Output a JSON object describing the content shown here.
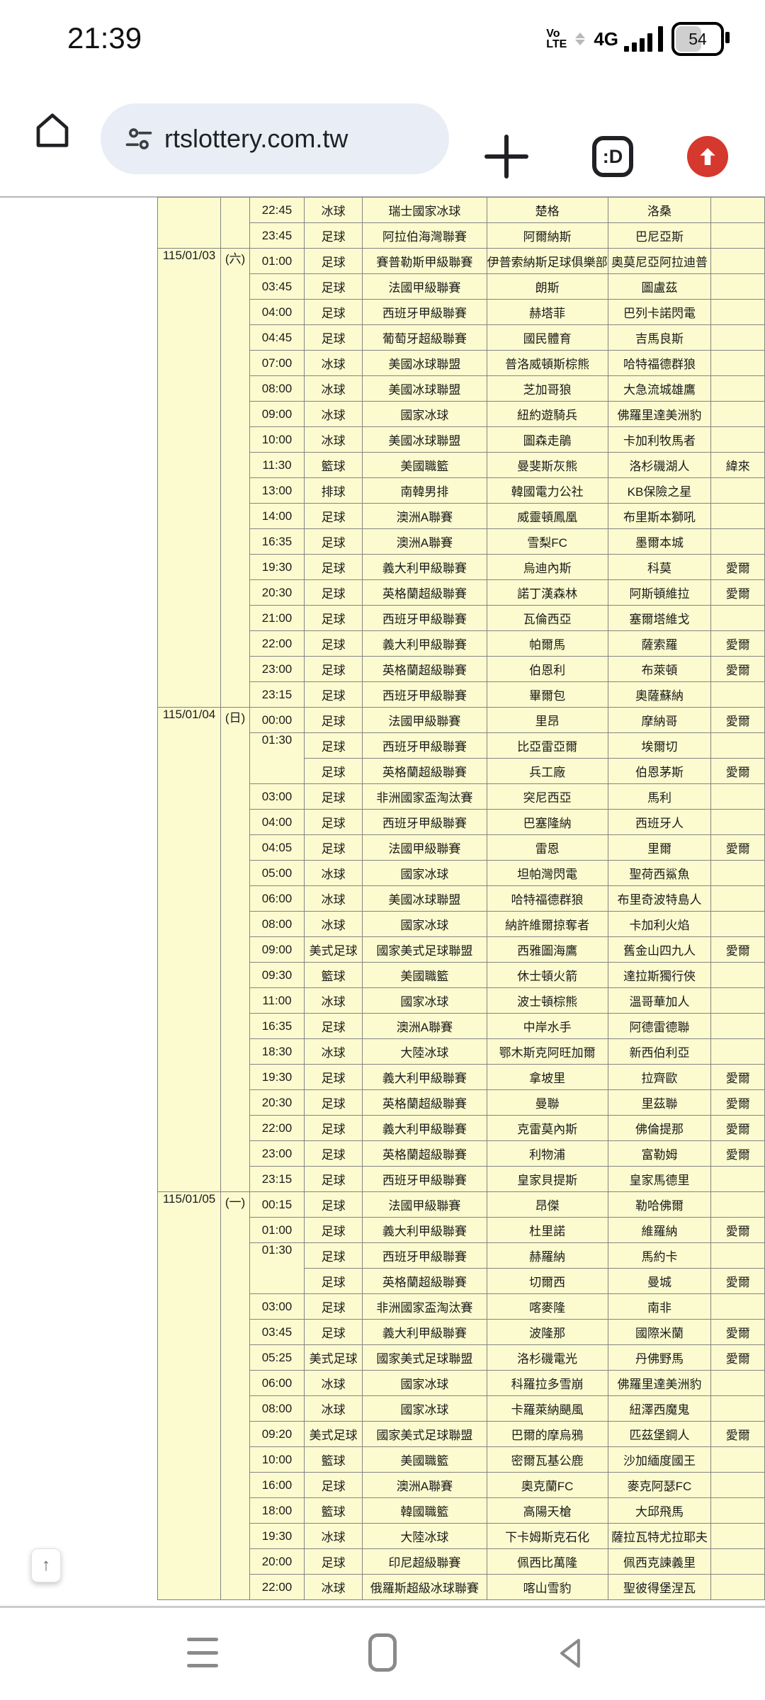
{
  "status_bar": {
    "time": "21:39",
    "carrier_badge_line1": "Vo",
    "carrier_badge_line2": "LTE",
    "network": "4G",
    "battery_percent": "54"
  },
  "toolbar": {
    "url": "rtslottery.com.tw",
    "tab_switcher_label": ":D"
  },
  "scroll_top": {
    "arrow": "↑"
  },
  "icons": {
    "home-icon": "house outline",
    "tune-icon": "site settings sliders",
    "plus-icon": "new tab",
    "tab-switcher-icon": "tab count box",
    "update-icon": "red circle up arrow",
    "recents-icon": "three lines",
    "nav-home-icon": "rounded rectangle",
    "back-icon": "left triangle",
    "scroll-top-icon": "up arrow"
  },
  "colors": {
    "cell_bg": "#fbfbcf",
    "cell_border": "#848484",
    "omnibox_bg": "#e9edf6",
    "update_red": "#d5382c"
  },
  "table": {
    "columns": [
      "date",
      "weekday",
      "time",
      "sport",
      "league",
      "home",
      "away",
      "channel"
    ],
    "sections": [
      {
        "date": "",
        "weekday": "",
        "rows": [
          {
            "time": "22:45",
            "sport": "冰球",
            "league": "瑞士國家冰球",
            "home": "楚格",
            "away": "洛桑",
            "channel": ""
          },
          {
            "time": "23:45",
            "sport": "足球",
            "league": "阿拉伯海灣聯賽",
            "home": "阿爾納斯",
            "away": "巴尼亞斯",
            "channel": ""
          }
        ]
      },
      {
        "date": "115/01/03",
        "weekday": "(六)",
        "rows": [
          {
            "time": "01:00",
            "sport": "足球",
            "league": "賽普勒斯甲級聯賽",
            "home": "伊普索納斯足球俱樂部",
            "away": "奧莫尼亞阿拉迪普",
            "channel": ""
          },
          {
            "time": "03:45",
            "sport": "足球",
            "league": "法國甲級聯賽",
            "home": "朗斯",
            "away": "圖盧茲",
            "channel": ""
          },
          {
            "time": "04:00",
            "sport": "足球",
            "league": "西班牙甲級聯賽",
            "home": "赫塔菲",
            "away": "巴列卡諾閃電",
            "channel": ""
          },
          {
            "time": "04:45",
            "sport": "足球",
            "league": "葡萄牙超級聯賽",
            "home": "國民體育",
            "away": "吉馬良斯",
            "channel": ""
          },
          {
            "time": "07:00",
            "sport": "冰球",
            "league": "美國冰球聯盟",
            "home": "普洛威頓斯棕熊",
            "away": "哈特福德群狼",
            "channel": ""
          },
          {
            "time": "08:00",
            "sport": "冰球",
            "league": "美國冰球聯盟",
            "home": "芝加哥狼",
            "away": "大急流城雄鷹",
            "channel": ""
          },
          {
            "time": "09:00",
            "sport": "冰球",
            "league": "國家冰球",
            "home": "紐約遊騎兵",
            "away": "佛羅里達美洲豹",
            "channel": ""
          },
          {
            "time": "10:00",
            "sport": "冰球",
            "league": "美國冰球聯盟",
            "home": "圖森走鵑",
            "away": "卡加利牧馬者",
            "channel": ""
          },
          {
            "time": "11:30",
            "sport": "籃球",
            "league": "美國職籃",
            "home": "曼斐斯灰熊",
            "away": "洛杉磯湖人",
            "channel": "緯來"
          },
          {
            "time": "13:00",
            "sport": "排球",
            "league": "南韓男排",
            "home": "韓國電力公社",
            "away": "KB保險之星",
            "channel": ""
          },
          {
            "time": "14:00",
            "sport": "足球",
            "league": "澳洲A聯賽",
            "home": "威靈頓鳳凰",
            "away": "布里斯本獅吼",
            "channel": ""
          },
          {
            "time": "16:35",
            "sport": "足球",
            "league": "澳洲A聯賽",
            "home": "雪梨FC",
            "away": "墨爾本城",
            "channel": ""
          },
          {
            "time": "19:30",
            "sport": "足球",
            "league": "義大利甲級聯賽",
            "home": "烏迪內斯",
            "away": "科莫",
            "channel": "愛爾"
          },
          {
            "time": "20:30",
            "sport": "足球",
            "league": "英格蘭超級聯賽",
            "home": "諾丁漢森林",
            "away": "阿斯頓維拉",
            "channel": "愛爾"
          },
          {
            "time": "21:00",
            "sport": "足球",
            "league": "西班牙甲級聯賽",
            "home": "瓦倫西亞",
            "away": "塞爾塔維戈",
            "channel": ""
          },
          {
            "time": "22:00",
            "sport": "足球",
            "league": "義大利甲級聯賽",
            "home": "帕爾馬",
            "away": "薩索羅",
            "channel": "愛爾"
          },
          {
            "time": "23:00",
            "sport": "足球",
            "league": "英格蘭超級聯賽",
            "home": "伯恩利",
            "away": "布萊頓",
            "channel": "愛爾"
          },
          {
            "time": "23:15",
            "sport": "足球",
            "league": "西班牙甲級聯賽",
            "home": "畢爾包",
            "away": "奧薩蘇納",
            "channel": ""
          }
        ]
      },
      {
        "date": "115/01/04",
        "weekday": "(日)",
        "rows": [
          {
            "time": "00:00",
            "sport": "足球",
            "league": "法國甲級聯賽",
            "home": "里昂",
            "away": "摩納哥",
            "channel": "愛爾"
          },
          {
            "time": "01:30",
            "time_rowspan": 2,
            "sport": "足球",
            "league": "西班牙甲級聯賽",
            "home": "比亞雷亞爾",
            "away": "埃爾切",
            "channel": ""
          },
          {
            "time_merged": true,
            "sport": "足球",
            "league": "英格蘭超級聯賽",
            "home": "兵工廠",
            "away": "伯恩茅斯",
            "channel": "愛爾"
          },
          {
            "time": "03:00",
            "sport": "足球",
            "league": "非洲國家盃淘汰賽",
            "home": "突尼西亞",
            "away": "馬利",
            "channel": ""
          },
          {
            "time": "04:00",
            "sport": "足球",
            "league": "西班牙甲級聯賽",
            "home": "巴塞隆納",
            "away": "西班牙人",
            "channel": ""
          },
          {
            "time": "04:05",
            "sport": "足球",
            "league": "法國甲級聯賽",
            "home": "雷恩",
            "away": "里爾",
            "channel": "愛爾"
          },
          {
            "time": "05:00",
            "sport": "冰球",
            "league": "國家冰球",
            "home": "坦帕灣閃電",
            "away": "聖荷西鯊魚",
            "channel": ""
          },
          {
            "time": "06:00",
            "sport": "冰球",
            "league": "美國冰球聯盟",
            "home": "哈特福德群狼",
            "away": "布里奇波特島人",
            "channel": ""
          },
          {
            "time": "08:00",
            "sport": "冰球",
            "league": "國家冰球",
            "home": "納許維爾掠奪者",
            "away": "卡加利火焰",
            "channel": ""
          },
          {
            "time": "09:00",
            "sport": "美式足球",
            "league": "國家美式足球聯盟",
            "home": "西雅圖海鷹",
            "away": "舊金山四九人",
            "channel": "愛爾"
          },
          {
            "time": "09:30",
            "sport": "籃球",
            "league": "美國職籃",
            "home": "休士頓火箭",
            "away": "達拉斯獨行俠",
            "channel": ""
          },
          {
            "time": "11:00",
            "sport": "冰球",
            "league": "國家冰球",
            "home": "波士頓棕熊",
            "away": "溫哥華加人",
            "channel": ""
          },
          {
            "time": "16:35",
            "sport": "足球",
            "league": "澳洲A聯賽",
            "home": "中岸水手",
            "away": "阿德雷德聯",
            "channel": ""
          },
          {
            "time": "18:30",
            "sport": "冰球",
            "league": "大陸冰球",
            "home": "鄂木斯克阿旺加爾",
            "away": "新西伯利亞",
            "channel": ""
          },
          {
            "time": "19:30",
            "sport": "足球",
            "league": "義大利甲級聯賽",
            "home": "拿坡里",
            "away": "拉齊歐",
            "channel": "愛爾"
          },
          {
            "time": "20:30",
            "sport": "足球",
            "league": "英格蘭超級聯賽",
            "home": "曼聯",
            "away": "里茲聯",
            "channel": "愛爾"
          },
          {
            "time": "22:00",
            "sport": "足球",
            "league": "義大利甲級聯賽",
            "home": "克雷莫內斯",
            "away": "佛倫提那",
            "channel": "愛爾"
          },
          {
            "time": "23:00",
            "sport": "足球",
            "league": "英格蘭超級聯賽",
            "home": "利物浦",
            "away": "富勒姆",
            "channel": "愛爾"
          },
          {
            "time": "23:15",
            "sport": "足球",
            "league": "西班牙甲級聯賽",
            "home": "皇家貝提斯",
            "away": "皇家馬德里",
            "channel": ""
          }
        ]
      },
      {
        "date": "115/01/05",
        "weekday": "(一)",
        "rows": [
          {
            "time": "00:15",
            "sport": "足球",
            "league": "法國甲級聯賽",
            "home": "昂傑",
            "away": "勒哈佛爾",
            "channel": ""
          },
          {
            "time": "01:00",
            "sport": "足球",
            "league": "義大利甲級聯賽",
            "home": "杜里諾",
            "away": "維羅納",
            "channel": "愛爾"
          },
          {
            "time": "01:30",
            "time_rowspan": 2,
            "sport": "足球",
            "league": "西班牙甲級聯賽",
            "home": "赫羅納",
            "away": "馬約卡",
            "channel": ""
          },
          {
            "time_merged": true,
            "sport": "足球",
            "league": "英格蘭超級聯賽",
            "home": "切爾西",
            "away": "曼城",
            "channel": "愛爾"
          },
          {
            "time": "03:00",
            "sport": "足球",
            "league": "非洲國家盃淘汰賽",
            "home": "喀麥隆",
            "away": "南非",
            "channel": ""
          },
          {
            "time": "03:45",
            "sport": "足球",
            "league": "義大利甲級聯賽",
            "home": "波隆那",
            "away": "國際米蘭",
            "channel": "愛爾"
          },
          {
            "time": "05:25",
            "sport": "美式足球",
            "league": "國家美式足球聯盟",
            "home": "洛杉磯電光",
            "away": "丹佛野馬",
            "channel": "愛爾"
          },
          {
            "time": "06:00",
            "sport": "冰球",
            "league": "國家冰球",
            "home": "科羅拉多雪崩",
            "away": "佛羅里達美洲豹",
            "channel": ""
          },
          {
            "time": "08:00",
            "sport": "冰球",
            "league": "國家冰球",
            "home": "卡羅萊納颶風",
            "away": "紐澤西魔鬼",
            "channel": ""
          },
          {
            "time": "09:20",
            "sport": "美式足球",
            "league": "國家美式足球聯盟",
            "home": "巴爾的摩烏鴉",
            "away": "匹茲堡鋼人",
            "channel": "愛爾"
          },
          {
            "time": "10:00",
            "sport": "籃球",
            "league": "美國職籃",
            "home": "密爾瓦基公鹿",
            "away": "沙加緬度國王",
            "channel": ""
          },
          {
            "time": "16:00",
            "sport": "足球",
            "league": "澳洲A聯賽",
            "home": "奧克蘭FC",
            "away": "麥克阿瑟FC",
            "channel": ""
          },
          {
            "time": "18:00",
            "sport": "籃球",
            "league": "韓國職籃",
            "home": "高陽天槍",
            "away": "大邱飛馬",
            "channel": ""
          },
          {
            "time": "19:30",
            "sport": "冰球",
            "league": "大陸冰球",
            "home": "下卡姆斯克石化",
            "away": "薩拉瓦特尤拉耶夫",
            "channel": ""
          },
          {
            "time": "20:00",
            "sport": "足球",
            "league": "印尼超級聯賽",
            "home": "佩西比萬隆",
            "away": "佩西克諫義里",
            "channel": ""
          },
          {
            "time": "22:00",
            "sport": "冰球",
            "league": "俄羅斯超級冰球聯賽",
            "home": "喀山雪豹",
            "away": "聖彼得堡涅瓦",
            "channel": ""
          }
        ]
      }
    ]
  }
}
